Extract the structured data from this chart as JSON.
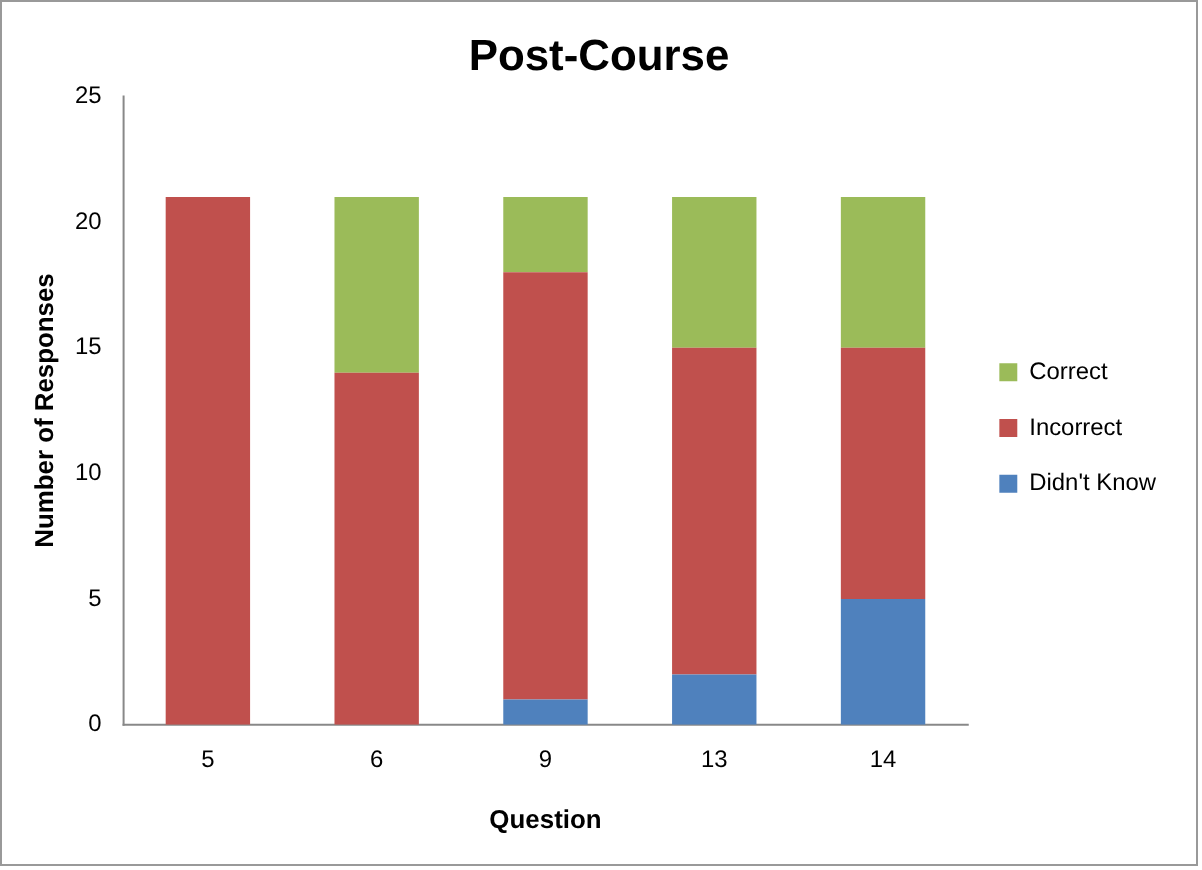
{
  "chart_data": {
    "type": "bar",
    "title": "Post-Course",
    "xlabel": "Question",
    "ylabel": "Number of Responses",
    "categories": [
      "5",
      "6",
      "9",
      "13",
      "14"
    ],
    "series": [
      {
        "name": "Didn't Know",
        "color": "#4f81bd",
        "values": [
          0,
          0,
          1,
          2,
          5
        ]
      },
      {
        "name": "Incorrect",
        "color": "#c0504d",
        "values": [
          21,
          14,
          17,
          13,
          10
        ]
      },
      {
        "name": "Correct",
        "color": "#9bbb59",
        "values": [
          0,
          7,
          3,
          6,
          6
        ]
      }
    ],
    "stacked": true,
    "ylim": [
      0,
      25
    ],
    "yticks": [
      0,
      5,
      10,
      15,
      20,
      25
    ],
    "grid": false,
    "legend": "right"
  }
}
